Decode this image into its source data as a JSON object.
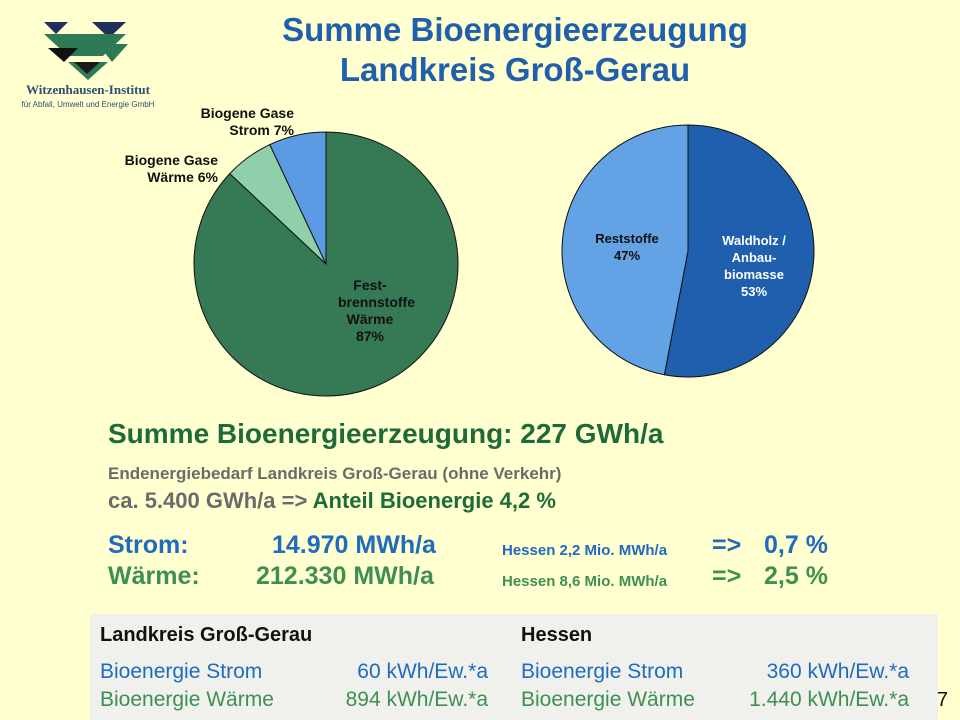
{
  "logo": {
    "name": "Witzenhausen-Institut",
    "subtitle": "für Abfall, Umwelt und Energie GmbH"
  },
  "title": {
    "line1": "Summe Bioenergieerzeugung",
    "line2": "Landkreis Groß-Gerau"
  },
  "chart_data": [
    {
      "type": "pie",
      "slices": [
        {
          "label_lines": [
            "Fest-",
            "brennstoffe",
            "Wärme",
            "87%"
          ],
          "value": 87,
          "color": "#357a55"
        },
        {
          "label_lines": [
            "Biogene Gase",
            "Wärme  6%"
          ],
          "value": 6,
          "color": "#8fcfaa"
        },
        {
          "label_lines": [
            "Biogene Gase",
            "Strom  7%"
          ],
          "value": 7,
          "color": "#5b9be3"
        }
      ]
    },
    {
      "type": "pie",
      "slices": [
        {
          "label_lines": [
            "Waldholz /",
            "Anbau-",
            "biomasse",
            "53%"
          ],
          "value": 53,
          "color": "#1f5fad"
        },
        {
          "label_lines": [
            "Reststoffe",
            "47%"
          ],
          "value": 47,
          "color": "#64a2e6"
        }
      ]
    }
  ],
  "summary": {
    "headline": "Summe Bioenergieerzeugung: 227 GWh/a",
    "demand": "Endenergiebedarf Landkreis Groß-Gerau  (ohne Verkehr)",
    "demand_value": "ca. 5.400 GWh/a =>",
    "share": "Anteil Bioenergie 4,2 %"
  },
  "rows": [
    {
      "label": "Strom:",
      "value": "14.970 MWh/a",
      "hessen": "Hessen 2,2 Mio. MWh/a",
      "arrow": "=>",
      "percent": "0,7 %"
    },
    {
      "label": "Wärme:",
      "value": "212.330 MWh/a",
      "hessen": "Hessen 8,6 Mio. MWh/a",
      "arrow": "=>",
      "percent": "2,5 %"
    }
  ],
  "comparison": {
    "left_title": "Landkreis Groß-Gerau",
    "right_title": "Hessen",
    "left": [
      {
        "label": "Bioenergie Strom",
        "value": "60 kWh/Ew.*a"
      },
      {
        "label": "Bioenergie Wärme",
        "value": "894 kWh/Ew.*a"
      }
    ],
    "right": [
      {
        "label": "Bioenergie Strom",
        "value": "360 kWh/Ew.*a"
      },
      {
        "label": "Bioenergie Wärme",
        "value": "1.440 kWh/Ew.*a"
      }
    ]
  },
  "page_number": "7"
}
